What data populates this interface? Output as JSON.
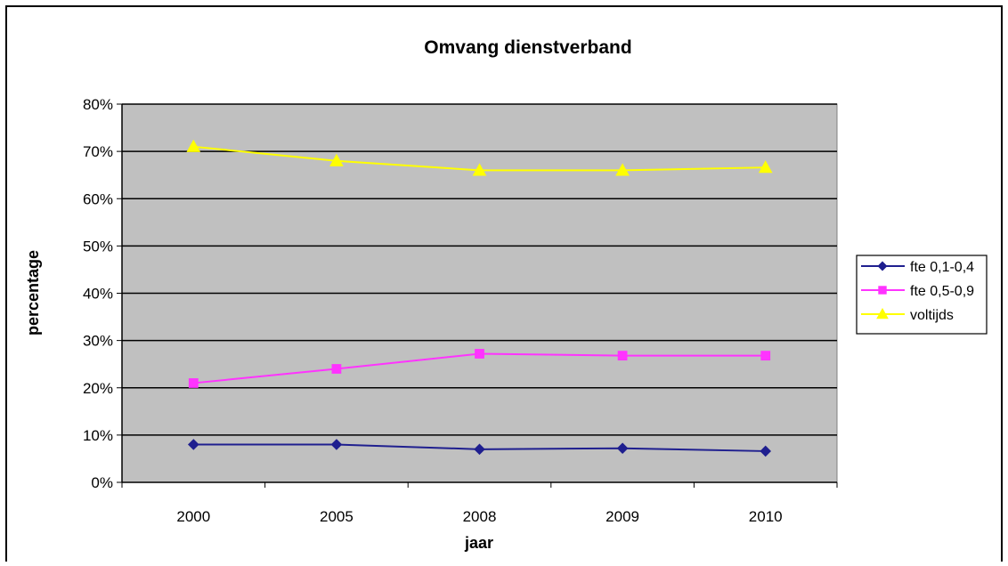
{
  "chart_data": {
    "type": "line",
    "title": "Omvang dienstverband",
    "xlabel": "jaar",
    "ylabel": "percentage",
    "categories": [
      "2000",
      "2005",
      "2008",
      "2009",
      "2010"
    ],
    "ylim": [
      0,
      80
    ],
    "yticks": [
      "0%",
      "10%",
      "20%",
      "30%",
      "40%",
      "50%",
      "60%",
      "70%",
      "80%"
    ],
    "grid": true,
    "legend_position": "right",
    "plot_background": "#c0c0c0",
    "series": [
      {
        "name": "fte 0,1-0,4",
        "color": "#1f1f8f",
        "marker": "diamond",
        "values": [
          8,
          8,
          7,
          7.2,
          6.6
        ]
      },
      {
        "name": "fte 0,5-0,9",
        "color": "#ff33ff",
        "marker": "square",
        "values": [
          21,
          24,
          27.2,
          26.8,
          26.8
        ]
      },
      {
        "name": "voltijds",
        "color": "#ffff00",
        "marker": "triangle",
        "values": [
          71,
          68,
          66,
          66,
          66.6
        ]
      }
    ]
  }
}
